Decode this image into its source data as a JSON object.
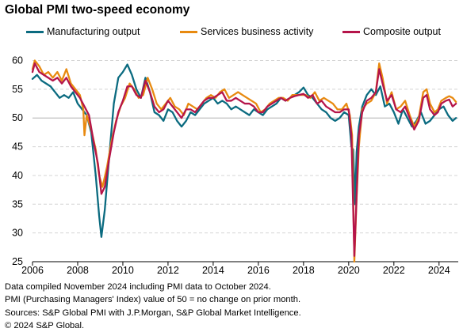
{
  "title": "Global PMI two-speed economy",
  "notes": [
    "Data compiled November 2024 including PMI data to October 2024.",
    "PMI (Purchasing Managers' Index) value of 50 = no change on prior month.",
    "Sources: S&P Global PMI with J.P.Morgan, S&P Global Market Intelligence.",
    "© 2024 S&P Global."
  ],
  "chart_data": {
    "type": "line",
    "title": "Global PMI two-speed economy",
    "xlabel": "",
    "ylabel": "",
    "x_ticks": [
      "2006",
      "2008",
      "2010",
      "2012",
      "2014",
      "2016",
      "2018",
      "2020",
      "2022",
      "2024"
    ],
    "y_ticks": [
      25,
      30,
      35,
      40,
      45,
      50,
      55,
      60
    ],
    "xlim": [
      2006.0,
      2024.85
    ],
    "ylim": [
      25,
      62
    ],
    "reference_line": 50,
    "grid": "horizontal dashed",
    "legend_position": "top",
    "series": [
      {
        "name": "Manufacturing output",
        "color": "#0b6b80",
        "points": [
          [
            2006.0,
            56.8
          ],
          [
            2006.2,
            57.5
          ],
          [
            2006.4,
            56.5
          ],
          [
            2006.6,
            56.0
          ],
          [
            2006.8,
            55.5
          ],
          [
            2007.0,
            54.5
          ],
          [
            2007.2,
            53.5
          ],
          [
            2007.4,
            54.0
          ],
          [
            2007.6,
            53.5
          ],
          [
            2007.8,
            54.5
          ],
          [
            2008.0,
            52.5
          ],
          [
            2008.2,
            51.5
          ],
          [
            2008.4,
            50.5
          ],
          [
            2008.6,
            47.5
          ],
          [
            2008.8,
            40.0
          ],
          [
            2008.95,
            33.0
          ],
          [
            2009.05,
            29.3
          ],
          [
            2009.2,
            34.0
          ],
          [
            2009.4,
            43.5
          ],
          [
            2009.6,
            52.5
          ],
          [
            2009.8,
            57.0
          ],
          [
            2010.0,
            58.0
          ],
          [
            2010.2,
            59.3
          ],
          [
            2010.4,
            57.5
          ],
          [
            2010.6,
            55.0
          ],
          [
            2010.8,
            53.5
          ],
          [
            2011.0,
            57.0
          ],
          [
            2011.2,
            54.5
          ],
          [
            2011.4,
            51.0
          ],
          [
            2011.6,
            50.5
          ],
          [
            2011.8,
            49.5
          ],
          [
            2012.0,
            51.5
          ],
          [
            2012.2,
            51.0
          ],
          [
            2012.4,
            49.5
          ],
          [
            2012.6,
            48.5
          ],
          [
            2012.8,
            49.5
          ],
          [
            2013.0,
            51.0
          ],
          [
            2013.2,
            50.5
          ],
          [
            2013.4,
            51.5
          ],
          [
            2013.6,
            52.5
          ],
          [
            2013.8,
            53.0
          ],
          [
            2014.0,
            53.5
          ],
          [
            2014.2,
            52.5
          ],
          [
            2014.4,
            53.0
          ],
          [
            2014.6,
            52.5
          ],
          [
            2014.8,
            51.5
          ],
          [
            2015.0,
            52.0
          ],
          [
            2015.2,
            51.5
          ],
          [
            2015.4,
            51.0
          ],
          [
            2015.6,
            50.5
          ],
          [
            2015.8,
            51.5
          ],
          [
            2016.0,
            51.0
          ],
          [
            2016.2,
            50.5
          ],
          [
            2016.4,
            51.5
          ],
          [
            2016.6,
            52.0
          ],
          [
            2016.8,
            52.5
          ],
          [
            2017.0,
            53.5
          ],
          [
            2017.2,
            53.0
          ],
          [
            2017.4,
            53.5
          ],
          [
            2017.6,
            54.0
          ],
          [
            2017.8,
            54.5
          ],
          [
            2018.0,
            55.3
          ],
          [
            2018.2,
            54.0
          ],
          [
            2018.4,
            53.5
          ],
          [
            2018.6,
            52.5
          ],
          [
            2018.8,
            51.5
          ],
          [
            2019.0,
            51.0
          ],
          [
            2019.2,
            50.0
          ],
          [
            2019.4,
            49.5
          ],
          [
            2019.6,
            50.0
          ],
          [
            2019.8,
            51.0
          ],
          [
            2020.0,
            50.5
          ],
          [
            2020.12,
            45.0
          ],
          [
            2020.2,
            44.5
          ],
          [
            2020.28,
            35.0
          ],
          [
            2020.35,
            44.0
          ],
          [
            2020.45,
            48.5
          ],
          [
            2020.6,
            52.0
          ],
          [
            2020.8,
            54.0
          ],
          [
            2021.0,
            55.0
          ],
          [
            2021.2,
            54.0
          ],
          [
            2021.4,
            55.5
          ],
          [
            2021.6,
            52.0
          ],
          [
            2021.8,
            52.5
          ],
          [
            2022.0,
            51.0
          ],
          [
            2022.2,
            49.0
          ],
          [
            2022.4,
            51.5
          ],
          [
            2022.6,
            50.0
          ],
          [
            2022.8,
            48.5
          ],
          [
            2023.0,
            49.5
          ],
          [
            2023.2,
            51.0
          ],
          [
            2023.4,
            49.0
          ],
          [
            2023.6,
            49.5
          ],
          [
            2023.8,
            50.5
          ],
          [
            2024.0,
            51.5
          ],
          [
            2024.2,
            52.0
          ],
          [
            2024.4,
            50.5
          ],
          [
            2024.6,
            49.5
          ],
          [
            2024.75,
            50.0
          ]
        ]
      },
      {
        "name": "Services business activity",
        "color": "#e88a10",
        "points": [
          [
            2006.0,
            58.5
          ],
          [
            2006.1,
            60.0
          ],
          [
            2006.3,
            59.0
          ],
          [
            2006.5,
            57.5
          ],
          [
            2006.7,
            58.0
          ],
          [
            2006.9,
            57.0
          ],
          [
            2007.1,
            58.0
          ],
          [
            2007.3,
            56.5
          ],
          [
            2007.5,
            58.5
          ],
          [
            2007.7,
            56.0
          ],
          [
            2007.9,
            55.0
          ],
          [
            2008.1,
            54.0
          ],
          [
            2008.25,
            51.5
          ],
          [
            2008.3,
            47.0
          ],
          [
            2008.4,
            50.5
          ],
          [
            2008.6,
            48.0
          ],
          [
            2008.8,
            44.5
          ],
          [
            2008.95,
            40.0
          ],
          [
            2009.1,
            38.0
          ],
          [
            2009.3,
            41.5
          ],
          [
            2009.5,
            46.0
          ],
          [
            2009.7,
            49.5
          ],
          [
            2009.9,
            52.0
          ],
          [
            2010.1,
            53.5
          ],
          [
            2010.3,
            56.0
          ],
          [
            2010.5,
            55.0
          ],
          [
            2010.7,
            53.5
          ],
          [
            2010.9,
            54.0
          ],
          [
            2011.1,
            57.0
          ],
          [
            2011.3,
            55.0
          ],
          [
            2011.5,
            52.5
          ],
          [
            2011.7,
            51.5
          ],
          [
            2011.9,
            52.5
          ],
          [
            2012.1,
            53.5
          ],
          [
            2012.3,
            52.0
          ],
          [
            2012.5,
            51.5
          ],
          [
            2012.7,
            50.5
          ],
          [
            2012.9,
            52.5
          ],
          [
            2013.1,
            52.0
          ],
          [
            2013.3,
            51.5
          ],
          [
            2013.5,
            52.5
          ],
          [
            2013.7,
            53.5
          ],
          [
            2013.9,
            54.0
          ],
          [
            2014.1,
            53.5
          ],
          [
            2014.3,
            54.5
          ],
          [
            2014.5,
            55.0
          ],
          [
            2014.7,
            53.5
          ],
          [
            2014.9,
            54.0
          ],
          [
            2015.1,
            54.5
          ],
          [
            2015.3,
            54.0
          ],
          [
            2015.5,
            53.5
          ],
          [
            2015.7,
            53.0
          ],
          [
            2015.9,
            52.5
          ],
          [
            2016.1,
            51.0
          ],
          [
            2016.3,
            51.5
          ],
          [
            2016.5,
            52.5
          ],
          [
            2016.7,
            53.0
          ],
          [
            2016.9,
            53.5
          ],
          [
            2017.1,
            53.5
          ],
          [
            2017.3,
            53.0
          ],
          [
            2017.5,
            54.0
          ],
          [
            2017.7,
            54.0
          ],
          [
            2017.9,
            54.0
          ],
          [
            2018.1,
            54.0
          ],
          [
            2018.3,
            53.5
          ],
          [
            2018.5,
            54.5
          ],
          [
            2018.7,
            53.0
          ],
          [
            2018.9,
            53.5
          ],
          [
            2019.1,
            53.0
          ],
          [
            2019.3,
            52.5
          ],
          [
            2019.5,
            51.5
          ],
          [
            2019.7,
            51.5
          ],
          [
            2019.9,
            52.5
          ],
          [
            2020.05,
            50.5
          ],
          [
            2020.15,
            47.0
          ],
          [
            2020.25,
            25.0
          ],
          [
            2020.35,
            36.0
          ],
          [
            2020.45,
            45.0
          ],
          [
            2020.6,
            51.5
          ],
          [
            2020.8,
            52.5
          ],
          [
            2021.0,
            53.0
          ],
          [
            2021.2,
            54.5
          ],
          [
            2021.35,
            59.5
          ],
          [
            2021.5,
            57.0
          ],
          [
            2021.7,
            52.5
          ],
          [
            2021.9,
            54.5
          ],
          [
            2022.1,
            51.5
          ],
          [
            2022.3,
            52.0
          ],
          [
            2022.5,
            53.0
          ],
          [
            2022.7,
            50.5
          ],
          [
            2022.9,
            48.5
          ],
          [
            2023.1,
            50.0
          ],
          [
            2023.3,
            54.5
          ],
          [
            2023.45,
            55.0
          ],
          [
            2023.6,
            52.5
          ],
          [
            2023.8,
            51.0
          ],
          [
            2023.95,
            51.5
          ],
          [
            2024.1,
            53.0
          ],
          [
            2024.3,
            53.5
          ],
          [
            2024.45,
            53.8
          ],
          [
            2024.6,
            53.5
          ],
          [
            2024.75,
            52.8
          ]
        ]
      },
      {
        "name": "Composite output",
        "color": "#b5154a",
        "points": [
          [
            2006.0,
            58.0
          ],
          [
            2006.1,
            59.5
          ],
          [
            2006.3,
            58.0
          ],
          [
            2006.5,
            57.5
          ],
          [
            2006.7,
            57.0
          ],
          [
            2006.9,
            56.5
          ],
          [
            2007.1,
            57.0
          ],
          [
            2007.3,
            56.0
          ],
          [
            2007.5,
            57.0
          ],
          [
            2007.7,
            55.5
          ],
          [
            2007.9,
            54.5
          ],
          [
            2008.1,
            53.5
          ],
          [
            2008.3,
            52.0
          ],
          [
            2008.5,
            50.5
          ],
          [
            2008.7,
            46.0
          ],
          [
            2008.9,
            42.0
          ],
          [
            2009.05,
            36.8
          ],
          [
            2009.2,
            38.0
          ],
          [
            2009.4,
            43.0
          ],
          [
            2009.6,
            47.5
          ],
          [
            2009.8,
            51.0
          ],
          [
            2010.0,
            53.0
          ],
          [
            2010.2,
            55.5
          ],
          [
            2010.4,
            55.5
          ],
          [
            2010.6,
            54.0
          ],
          [
            2010.8,
            53.5
          ],
          [
            2011.0,
            56.5
          ],
          [
            2011.2,
            54.5
          ],
          [
            2011.4,
            52.0
          ],
          [
            2011.6,
            51.0
          ],
          [
            2011.8,
            51.5
          ],
          [
            2012.0,
            53.0
          ],
          [
            2012.2,
            52.0
          ],
          [
            2012.4,
            51.0
          ],
          [
            2012.6,
            50.0
          ],
          [
            2012.8,
            51.5
          ],
          [
            2013.0,
            51.5
          ],
          [
            2013.2,
            51.0
          ],
          [
            2013.4,
            52.0
          ],
          [
            2013.6,
            53.0
          ],
          [
            2013.8,
            53.5
          ],
          [
            2014.0,
            53.5
          ],
          [
            2014.2,
            54.0
          ],
          [
            2014.4,
            54.5
          ],
          [
            2014.6,
            53.0
          ],
          [
            2014.8,
            53.0
          ],
          [
            2015.0,
            53.5
          ],
          [
            2015.2,
            53.0
          ],
          [
            2015.4,
            52.5
          ],
          [
            2015.6,
            52.5
          ],
          [
            2015.8,
            52.0
          ],
          [
            2016.0,
            51.0
          ],
          [
            2016.2,
            51.0
          ],
          [
            2016.4,
            52.0
          ],
          [
            2016.6,
            52.5
          ],
          [
            2016.8,
            53.0
          ],
          [
            2017.0,
            53.5
          ],
          [
            2017.2,
            53.0
          ],
          [
            2017.4,
            53.5
          ],
          [
            2017.6,
            53.8
          ],
          [
            2017.8,
            54.0
          ],
          [
            2018.0,
            54.2
          ],
          [
            2018.2,
            53.5
          ],
          [
            2018.4,
            54.0
          ],
          [
            2018.6,
            52.5
          ],
          [
            2018.8,
            53.0
          ],
          [
            2019.0,
            52.0
          ],
          [
            2019.2,
            51.5
          ],
          [
            2019.4,
            51.0
          ],
          [
            2019.6,
            51.0
          ],
          [
            2019.8,
            51.5
          ],
          [
            2020.0,
            51.5
          ],
          [
            2020.12,
            47.0
          ],
          [
            2020.25,
            26.0
          ],
          [
            2020.35,
            36.5
          ],
          [
            2020.45,
            47.0
          ],
          [
            2020.6,
            51.0
          ],
          [
            2020.8,
            53.0
          ],
          [
            2021.0,
            53.5
          ],
          [
            2021.2,
            54.5
          ],
          [
            2021.35,
            58.5
          ],
          [
            2021.5,
            56.0
          ],
          [
            2021.7,
            53.0
          ],
          [
            2021.9,
            54.0
          ],
          [
            2022.1,
            51.5
          ],
          [
            2022.3,
            51.0
          ],
          [
            2022.5,
            52.0
          ],
          [
            2022.7,
            50.0
          ],
          [
            2022.9,
            48.0
          ],
          [
            2023.1,
            49.5
          ],
          [
            2023.3,
            53.5
          ],
          [
            2023.45,
            54.0
          ],
          [
            2023.6,
            51.5
          ],
          [
            2023.8,
            50.5
          ],
          [
            2023.95,
            51.0
          ],
          [
            2024.1,
            52.5
          ],
          [
            2024.3,
            53.0
          ],
          [
            2024.45,
            53.2
          ],
          [
            2024.6,
            52.0
          ],
          [
            2024.75,
            52.5
          ]
        ]
      }
    ]
  }
}
